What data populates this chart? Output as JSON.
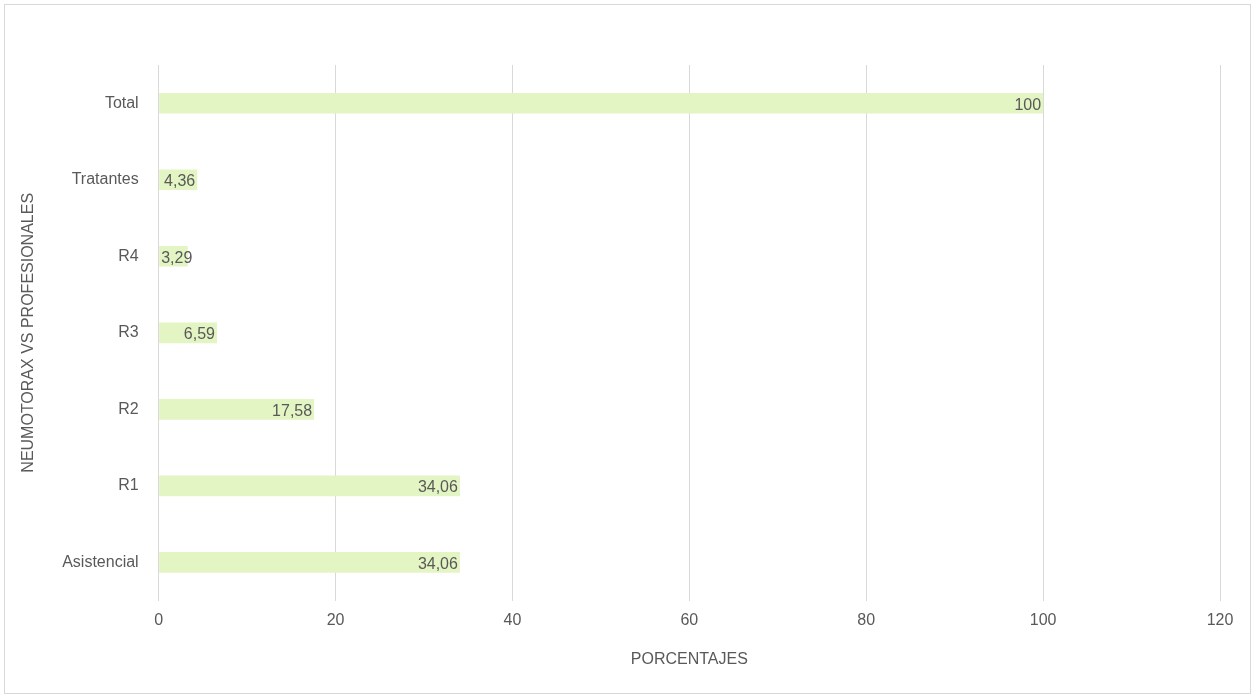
{
  "chart_data": {
    "type": "bar",
    "orientation": "horizontal",
    "xlabel": "PORCENTAJES",
    "ylabel": "NEUMOTORAX VS PROFESIONALES",
    "categories": [
      "Total",
      "Tratantes",
      "R4",
      "R3",
      "R2",
      "R1",
      "Asistencial"
    ],
    "values": [
      100,
      4.36,
      3.29,
      6.59,
      17.58,
      34.06,
      34.06
    ],
    "value_labels": [
      "100",
      "4,36",
      "3,29",
      "6,59",
      "17,58",
      "34,06",
      "34,06"
    ],
    "color": "#e4f5c4",
    "xlim": [
      0,
      120
    ],
    "xticks": [
      0,
      20,
      40,
      60,
      80,
      100,
      120
    ],
    "grid": "x",
    "legend": false
  }
}
